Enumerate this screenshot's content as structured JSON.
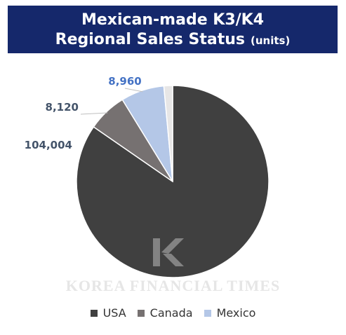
{
  "header": {
    "title_line1": "Mexican-made K3/K4",
    "title_line2": "Regional Sales Status",
    "unit": "(units)"
  },
  "watermark": {
    "text": "KOREA FINANCIAL TIMES"
  },
  "chart_data": {
    "type": "pie",
    "title": "Mexican-made K3/K4 Regional Sales Status",
    "unit": "(units)",
    "legend_position": "bottom",
    "slices": [
      {
        "name": "USA",
        "value": 104004,
        "label": "104,004",
        "color": "#404040"
      },
      {
        "name": "Canada",
        "value": 8120,
        "label": "8,120",
        "color": "#767171"
      },
      {
        "name": "Mexico",
        "value": 8960,
        "label": "8,960",
        "color": "#b4c7e7"
      },
      {
        "name": "",
        "value": 1800,
        "label": "",
        "color": "#e7e6e6"
      }
    ]
  }
}
